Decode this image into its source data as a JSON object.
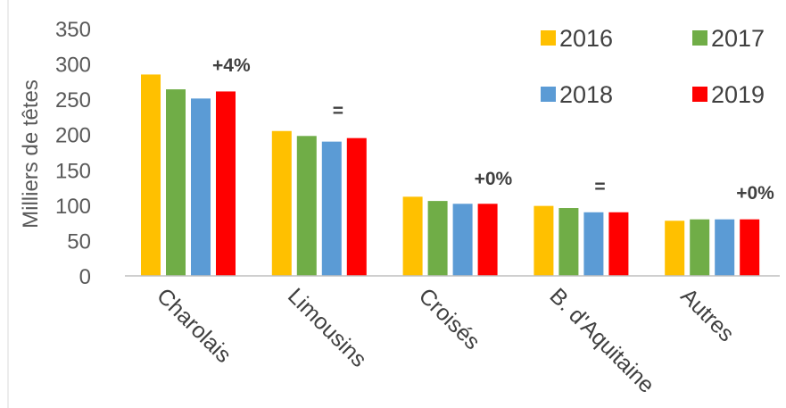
{
  "chart_data": {
    "type": "bar",
    "title": "",
    "xlabel": "",
    "ylabel": "Milliers de têtes",
    "ylim": [
      0,
      350
    ],
    "yticks": [
      0,
      50,
      100,
      150,
      200,
      250,
      300,
      350
    ],
    "ytick_labels": [
      "0",
      "50",
      "100",
      "150",
      "200",
      "250",
      "300",
      "350"
    ],
    "grid": false,
    "legend_position": "top-right",
    "categories": [
      "Charolais",
      "Limousins",
      "Croisés",
      "B. d'Aquitaine",
      "Autres"
    ],
    "series": [
      {
        "name": "2016",
        "color": "#FFC000",
        "values": [
          285,
          205,
          112,
          99,
          78
        ]
      },
      {
        "name": "2017",
        "color": "#70AD47",
        "values": [
          264,
          198,
          106,
          96,
          80
        ]
      },
      {
        "name": "2018",
        "color": "#5B9BD5",
        "values": [
          251,
          190,
          102,
          90,
          80
        ]
      },
      {
        "name": "2019",
        "color": "#FF0000",
        "values": [
          261,
          195,
          102,
          90,
          80
        ]
      }
    ],
    "annotations": [
      "+4%",
      "=",
      "+0%",
      "=",
      "+0%"
    ]
  }
}
